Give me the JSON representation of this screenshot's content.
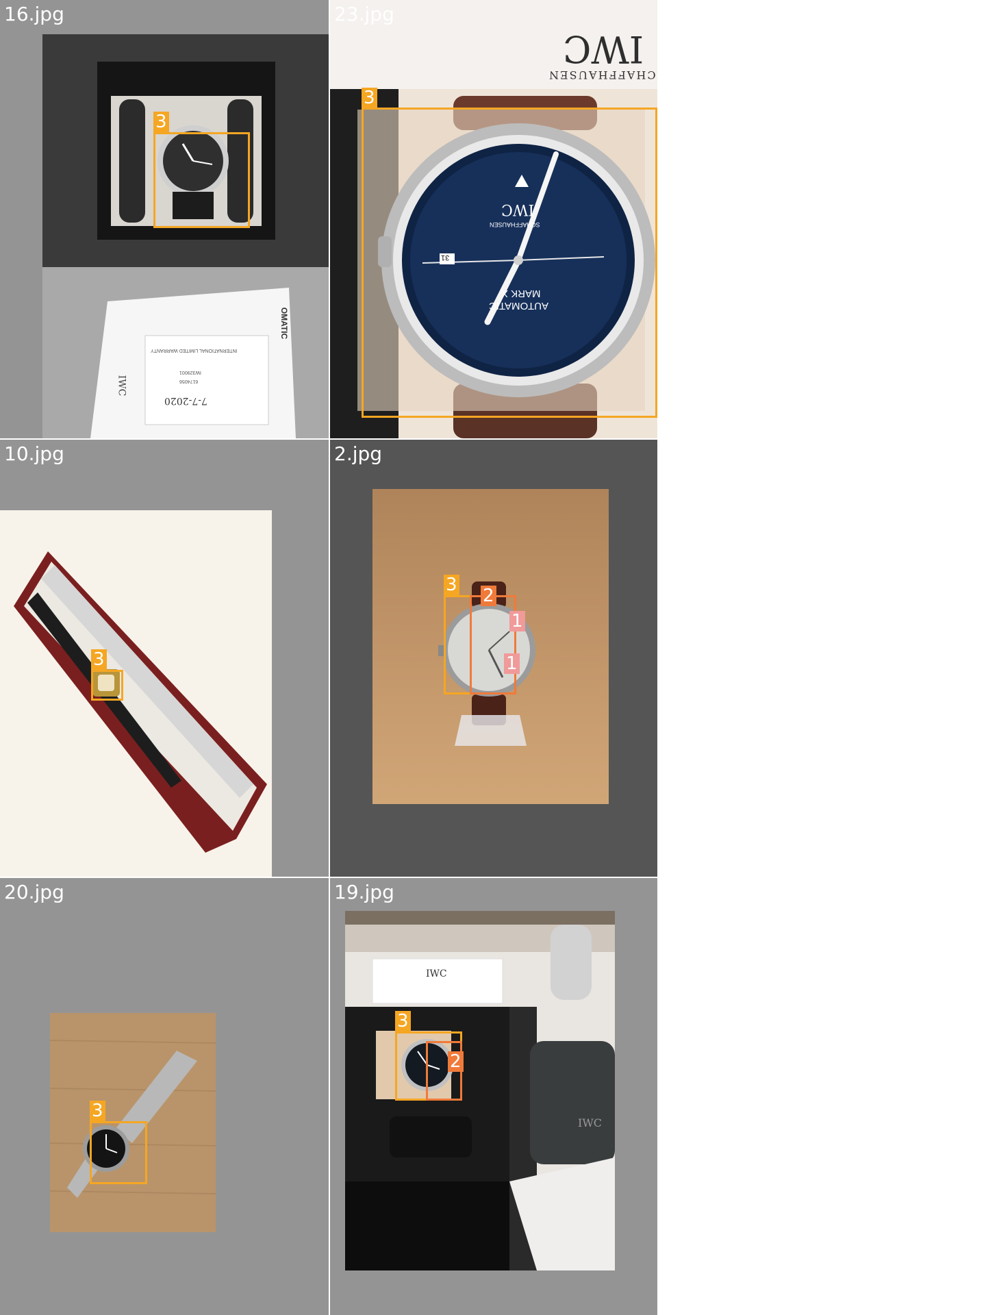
{
  "colors": {
    "cell_gray": "#949494",
    "cell_dark": "#555555",
    "box_label_3": "#f5a623",
    "box_label_2": "#f07a3a",
    "box_label_1": "#f09a9a"
  },
  "cells": [
    {
      "filename": "16.jpg",
      "labels": [
        "3"
      ],
      "printed_text": {
        "warranty_title": "INTERNATIONAL LIMITED WARRANTY",
        "reference": "IW329001",
        "serial": "6174056",
        "date": "7-7-2020",
        "brand": "IWC",
        "card_side": "OMATIC"
      }
    },
    {
      "filename": "23.jpg",
      "labels": [
        "3"
      ],
      "printed_text": {
        "brand": "IWC",
        "city": "SCHAFFHAUSEN",
        "dial_line1": "MARK X",
        "dial_line2": "AUTOMATIC",
        "date": "31"
      }
    },
    {
      "filename": "10.jpg",
      "labels": [
        "3"
      ]
    },
    {
      "filename": "2.jpg",
      "labels": [
        "3",
        "2",
        "1",
        "1"
      ]
    },
    {
      "filename": "20.jpg",
      "labels": [
        "3"
      ]
    },
    {
      "filename": "19.jpg",
      "labels": [
        "3",
        "2"
      ],
      "printed_text": {
        "box_brand": "IWC",
        "pouch_brand": "IWC"
      }
    }
  ]
}
